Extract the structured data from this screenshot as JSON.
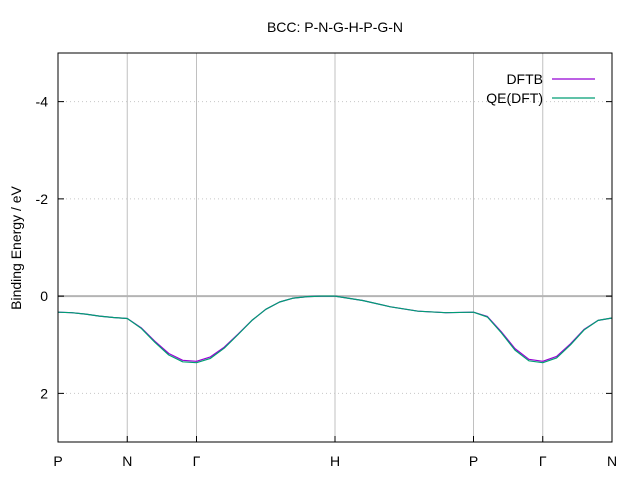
{
  "chart_data": {
    "type": "line",
    "title": "BCC: P-N-G-H-P-G-N",
    "xlabel": "",
    "ylabel": "Binding Energy / eV",
    "x_ticks": [
      {
        "label": "P",
        "x": 0.0
      },
      {
        "label": "N",
        "x": 0.5
      },
      {
        "label": "Γ",
        "x": 1.0
      },
      {
        "label": "H",
        "x": 2.0
      },
      {
        "label": "P",
        "x": 3.0
      },
      {
        "label": "Γ",
        "x": 3.5
      },
      {
        "label": "N",
        "x": 4.0
      }
    ],
    "xlim": [
      0,
      4
    ],
    "ylim": [
      3,
      -5
    ],
    "y_reversed": true,
    "y_ticks": [
      2,
      0,
      -2,
      -4
    ],
    "y_tick_labels": [
      "2",
      "0",
      "-2",
      "-4"
    ],
    "grid": true,
    "zero_line": 0,
    "legend_position": "top-right",
    "series": [
      {
        "name": "DFTB",
        "color": "#9400d3",
        "x": [
          0,
          0.1,
          0.2,
          0.3,
          0.4,
          0.5,
          0.6,
          0.7,
          0.8,
          0.9,
          1.0,
          1.1,
          1.2,
          1.3,
          1.4,
          1.5,
          1.6,
          1.7,
          1.8,
          1.9,
          2.0,
          2.2,
          2.4,
          2.6,
          2.8,
          3.0,
          3.1,
          3.2,
          3.3,
          3.4,
          3.5,
          3.6,
          3.7,
          3.8,
          3.9,
          4.0
        ],
        "values": [
          0.33,
          0.34,
          0.37,
          0.41,
          0.44,
          0.46,
          0.65,
          0.93,
          1.18,
          1.32,
          1.34,
          1.25,
          1.05,
          0.78,
          0.5,
          0.27,
          0.12,
          0.04,
          0.01,
          0.0,
          0.0,
          0.09,
          0.22,
          0.31,
          0.34,
          0.33,
          0.42,
          0.73,
          1.08,
          1.3,
          1.34,
          1.24,
          0.98,
          0.68,
          0.5,
          0.45
        ]
      },
      {
        "name": "QE(DFT)",
        "color": "#009e73",
        "x": [
          0,
          0.1,
          0.2,
          0.3,
          0.4,
          0.5,
          0.6,
          0.7,
          0.8,
          0.9,
          1.0,
          1.1,
          1.2,
          1.3,
          1.4,
          1.5,
          1.6,
          1.7,
          1.8,
          1.9,
          2.0,
          2.2,
          2.4,
          2.6,
          2.8,
          3.0,
          3.1,
          3.2,
          3.3,
          3.4,
          3.5,
          3.6,
          3.7,
          3.8,
          3.9,
          4.0
        ],
        "values": [
          0.33,
          0.34,
          0.37,
          0.41,
          0.44,
          0.46,
          0.66,
          0.95,
          1.21,
          1.35,
          1.37,
          1.28,
          1.07,
          0.79,
          0.5,
          0.27,
          0.12,
          0.04,
          0.01,
          0.0,
          0.0,
          0.09,
          0.22,
          0.31,
          0.34,
          0.33,
          0.43,
          0.75,
          1.11,
          1.33,
          1.37,
          1.27,
          1.0,
          0.69,
          0.5,
          0.45
        ]
      }
    ]
  }
}
